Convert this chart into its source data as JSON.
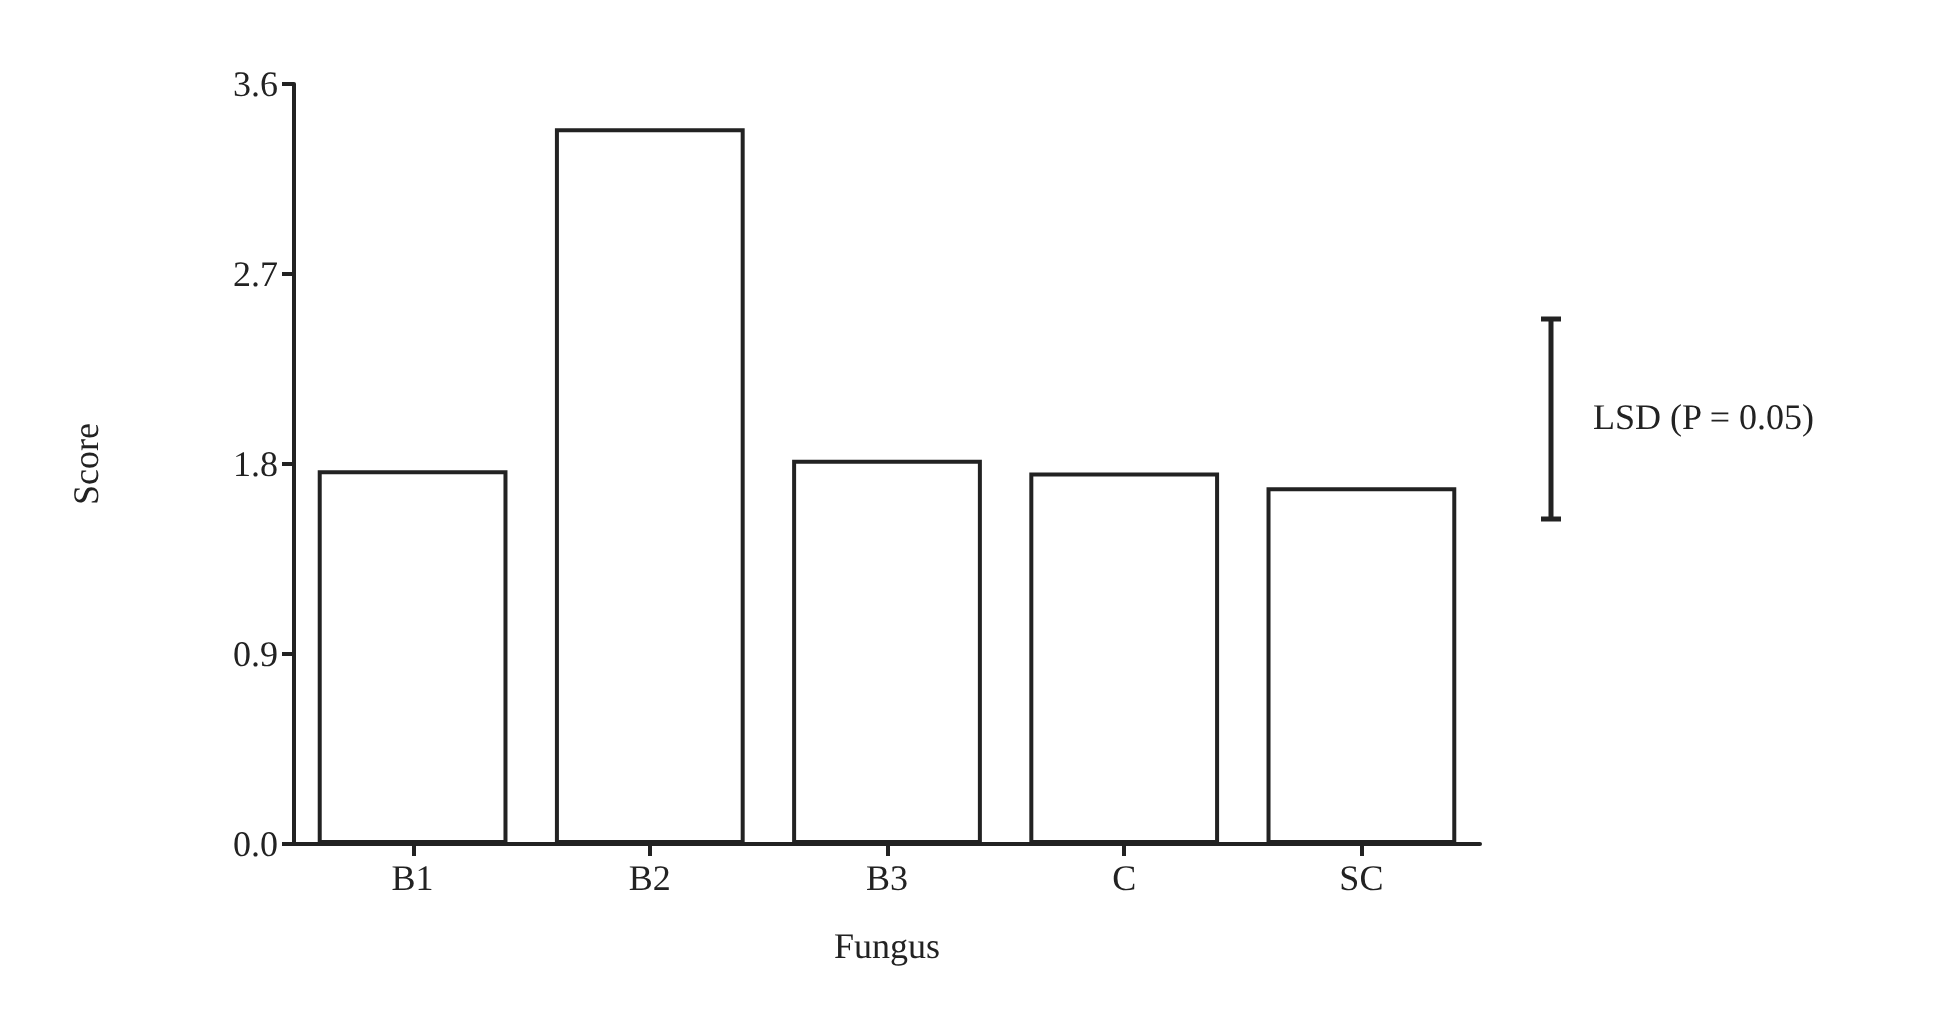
{
  "chart_data": {
    "type": "bar",
    "xlabel": "Fungus",
    "ylabel": "Score",
    "categories": [
      "B1",
      "B2",
      "B3",
      "C",
      "SC"
    ],
    "values": [
      1.77,
      3.39,
      1.82,
      1.76,
      1.69
    ],
    "color": "#ffffff",
    "ylim": [
      0,
      3.6
    ],
    "yticks": [
      {
        "value": 0,
        "label": "0.0"
      },
      0.9,
      1.8,
      2.7,
      3.6
    ],
    "annotations": [
      "LSD (P = 0.05)"
    ],
    "grid": false
  }
}
